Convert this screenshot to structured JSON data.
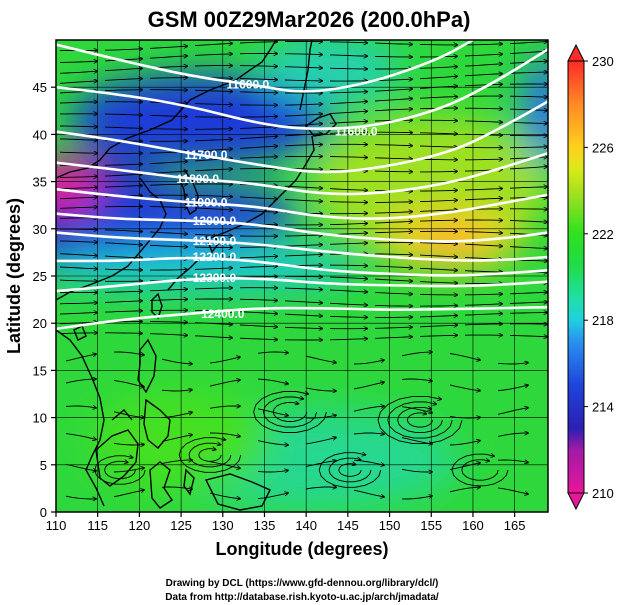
{
  "title": "GSM 00Z29Mar2026 (200.0hPa)",
  "xlabel": "Longitude (degrees)",
  "ylabel": "Latitude  (degrees)",
  "credits": {
    "line1": "Drawing by DCL (https://www.gfd-dennou.org/library/dcl/)",
    "line2": "Data from http://database.rish.kyoto-u.ac.jp/arch/jmadata/"
  },
  "x_ticks": [
    {
      "value": 110,
      "label": "110"
    },
    {
      "value": 115,
      "label": "115"
    },
    {
      "value": 120,
      "label": "120"
    },
    {
      "value": 125,
      "label": "125"
    },
    {
      "value": 130,
      "label": "130"
    },
    {
      "value": 135,
      "label": "135"
    },
    {
      "value": 140,
      "label": "140"
    },
    {
      "value": 145,
      "label": "145"
    },
    {
      "value": 150,
      "label": "150"
    },
    {
      "value": 155,
      "label": "155"
    },
    {
      "value": 160,
      "label": "160"
    },
    {
      "value": 165,
      "label": "165"
    }
  ],
  "y_ticks": [
    {
      "value": 0,
      "label": "0"
    },
    {
      "value": 5,
      "label": "5"
    },
    {
      "value": 10,
      "label": "10"
    },
    {
      "value": 15,
      "label": "15"
    },
    {
      "value": 20,
      "label": "20"
    },
    {
      "value": 25,
      "label": "25"
    },
    {
      "value": 30,
      "label": "30"
    },
    {
      "value": 35,
      "label": "35"
    },
    {
      "value": 40,
      "label": "40"
    },
    {
      "value": 45,
      "label": "45"
    }
  ],
  "extent": {
    "lon": [
      110,
      169
    ],
    "lat": [
      0,
      50
    ]
  },
  "colorbar": {
    "min": 210,
    "max": 230,
    "ticks": [
      {
        "value": 230,
        "label": "230"
      },
      {
        "value": 226,
        "label": "226"
      },
      {
        "value": 222,
        "label": "222"
      },
      {
        "value": 218,
        "label": "218"
      },
      {
        "value": 214,
        "label": "214"
      },
      {
        "value": 210,
        "label": "210"
      }
    ],
    "stops": [
      {
        "value": 210,
        "color": "#e8169a"
      },
      {
        "value": 212,
        "color": "#a01aa8"
      },
      {
        "value": 213,
        "color": "#2a1fb4"
      },
      {
        "value": 215,
        "color": "#1f45dc"
      },
      {
        "value": 217,
        "color": "#2a90f0"
      },
      {
        "value": 218,
        "color": "#20d0e0"
      },
      {
        "value": 219,
        "color": "#1ee0a8"
      },
      {
        "value": 220.5,
        "color": "#22dc48"
      },
      {
        "value": 222,
        "color": "#2ee020"
      },
      {
        "value": 223.5,
        "color": "#8ce020"
      },
      {
        "value": 225,
        "color": "#dce81a"
      },
      {
        "value": 226,
        "color": "#ffd21c"
      },
      {
        "value": 228,
        "color": "#ff8a24"
      },
      {
        "value": 230,
        "color": "#ff2a2a"
      }
    ]
  },
  "chart_data": {
    "type": "heatmap",
    "field": "temperature",
    "units_range": [
      210,
      230
    ],
    "contours": [
      {
        "label": "11600.0",
        "label_lon": 146,
        "label_lat": 40.3,
        "points": [
          [
            110,
            45
          ],
          [
            118,
            44.2
          ],
          [
            126,
            43
          ],
          [
            134,
            41.2
          ],
          [
            140,
            40.5
          ],
          [
            148,
            40.8
          ],
          [
            156,
            42.6
          ],
          [
            162,
            45.2
          ],
          [
            169,
            49
          ]
        ]
      },
      {
        "label": "11600.0",
        "label_lon": 133,
        "label_lat": 45.3,
        "points": [
          [
            110,
            49.5
          ],
          [
            118,
            47.8
          ],
          [
            126,
            46.2
          ],
          [
            134,
            45.2
          ],
          [
            140,
            44.3
          ],
          [
            148,
            45.5
          ],
          [
            156,
            48
          ],
          [
            160,
            50
          ]
        ]
      },
      {
        "label": "11700.0",
        "label_lon": 128,
        "label_lat": 37.8,
        "points": [
          [
            110,
            40.3
          ],
          [
            118,
            39.3
          ],
          [
            126,
            38
          ],
          [
            134,
            36.8
          ],
          [
            142,
            35.8
          ],
          [
            150,
            36.6
          ],
          [
            158,
            38.3
          ],
          [
            164,
            41
          ],
          [
            169,
            43.5
          ]
        ]
      },
      {
        "label": "11800.0",
        "label_lon": 127,
        "label_lat": 35.3,
        "points": [
          [
            110,
            37
          ],
          [
            118,
            36.2
          ],
          [
            126,
            35.3
          ],
          [
            134,
            34.8
          ],
          [
            142,
            33.6
          ],
          [
            150,
            33.8
          ],
          [
            158,
            35
          ],
          [
            164,
            36.6
          ],
          [
            169,
            38
          ]
        ]
      },
      {
        "label": "11900.0",
        "label_lon": 128,
        "label_lat": 32.8,
        "points": [
          [
            110,
            34.2
          ],
          [
            118,
            33.4
          ],
          [
            126,
            32.8
          ],
          [
            134,
            32.4
          ],
          [
            142,
            31.2
          ],
          [
            150,
            31
          ],
          [
            158,
            31.8
          ],
          [
            164,
            32.8
          ],
          [
            169,
            33.6
          ]
        ]
      },
      {
        "label": "12000.0",
        "label_lon": 129,
        "label_lat": 30.8,
        "points": [
          [
            110,
            31.6
          ],
          [
            118,
            31
          ],
          [
            126,
            30.9
          ],
          [
            134,
            30.5
          ],
          [
            142,
            29.4
          ],
          [
            150,
            28.8
          ],
          [
            158,
            28.6
          ],
          [
            164,
            29
          ],
          [
            169,
            29.6
          ]
        ]
      },
      {
        "label": "12100.0",
        "label_lon": 129,
        "label_lat": 28.7,
        "points": [
          [
            110,
            29.6
          ],
          [
            118,
            29
          ],
          [
            126,
            28.8
          ],
          [
            134,
            28.4
          ],
          [
            142,
            27.6
          ],
          [
            150,
            27
          ],
          [
            158,
            26.6
          ],
          [
            164,
            26.7
          ],
          [
            169,
            27
          ]
        ]
      },
      {
        "label": "12200.0",
        "label_lon": 129,
        "label_lat": 27,
        "points": [
          [
            110,
            26.6
          ],
          [
            118,
            26.6
          ],
          [
            126,
            27
          ],
          [
            134,
            26.6
          ],
          [
            142,
            25.6
          ],
          [
            150,
            25.2
          ],
          [
            158,
            25
          ],
          [
            164,
            25.3
          ],
          [
            169,
            25.6
          ]
        ]
      },
      {
        "label": "12300.0",
        "label_lon": 129,
        "label_lat": 24.8,
        "points": [
          [
            110,
            23.4
          ],
          [
            118,
            24
          ],
          [
            126,
            24.7
          ],
          [
            134,
            24.8
          ],
          [
            142,
            24.2
          ],
          [
            150,
            24
          ],
          [
            158,
            23.9
          ],
          [
            164,
            24.1
          ],
          [
            169,
            24.4
          ]
        ]
      },
      {
        "label": "12400.0",
        "label_lon": 130,
        "label_lat": 21,
        "points": [
          [
            110,
            19.4
          ],
          [
            118,
            20.4
          ],
          [
            126,
            21
          ],
          [
            134,
            21.6
          ],
          [
            142,
            21.6
          ],
          [
            150,
            21.4
          ],
          [
            158,
            21.5
          ],
          [
            164,
            21.6
          ],
          [
            169,
            21.7
          ]
        ]
      }
    ]
  }
}
